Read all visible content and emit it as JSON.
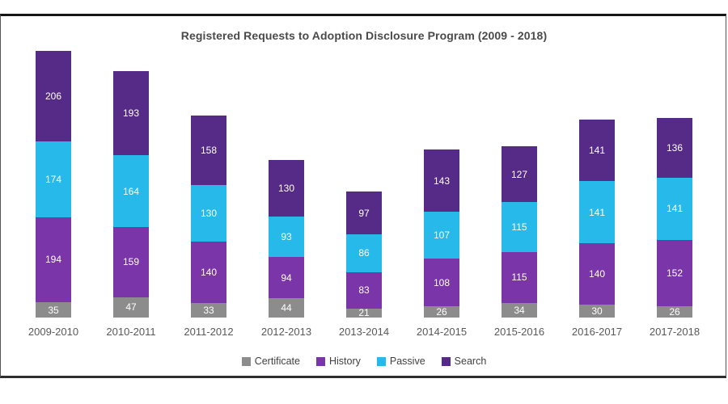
{
  "title": "Registered Requests to Adoption Disclosure Program (2009 - 2018)",
  "colors": {
    "certificate": "#8C8C8C",
    "history": "#7A35A8",
    "passive": "#27B9E9",
    "search": "#552B87",
    "value_text": "#FFFFFF",
    "axis_text": "#595959",
    "title_text": "#4A4A4A",
    "frame_line": "#161616"
  },
  "legend": [
    {
      "label": "Certificate",
      "color_key": "certificate"
    },
    {
      "label": "History",
      "color_key": "history"
    },
    {
      "label": "Passive",
      "color_key": "passive"
    },
    {
      "label": "Search",
      "color_key": "search"
    }
  ],
  "chart_data": {
    "type": "bar",
    "stacked": true,
    "title": "Registered Requests to Adoption Disclosure Program (2009 - 2018)",
    "categories": [
      "2009-2010",
      "2010-2011",
      "2011-2012",
      "2012-2013",
      "2013-2014",
      "2014-2015",
      "2015-2016",
      "2016-2017",
      "2017-2018"
    ],
    "series": [
      {
        "name": "Certificate",
        "color_key": "certificate",
        "values": [
          35,
          47,
          33,
          44,
          21,
          26,
          34,
          30,
          26
        ]
      },
      {
        "name": "History",
        "color_key": "history",
        "values": [
          194,
          159,
          140,
          94,
          83,
          108,
          115,
          140,
          152
        ]
      },
      {
        "name": "Passive",
        "color_key": "passive",
        "values": [
          174,
          164,
          130,
          93,
          86,
          107,
          115,
          141,
          141
        ]
      },
      {
        "name": "Search",
        "color_key": "search",
        "values": [
          206,
          193,
          158,
          130,
          97,
          143,
          127,
          141,
          136
        ]
      }
    ],
    "totals": [
      609,
      563,
      461,
      361,
      287,
      384,
      391,
      452,
      455
    ],
    "xlabel": "",
    "ylabel": "",
    "ylim": [
      0,
      620
    ],
    "grid": false,
    "legend_position": "bottom",
    "data_labels": "inside-center-white"
  }
}
